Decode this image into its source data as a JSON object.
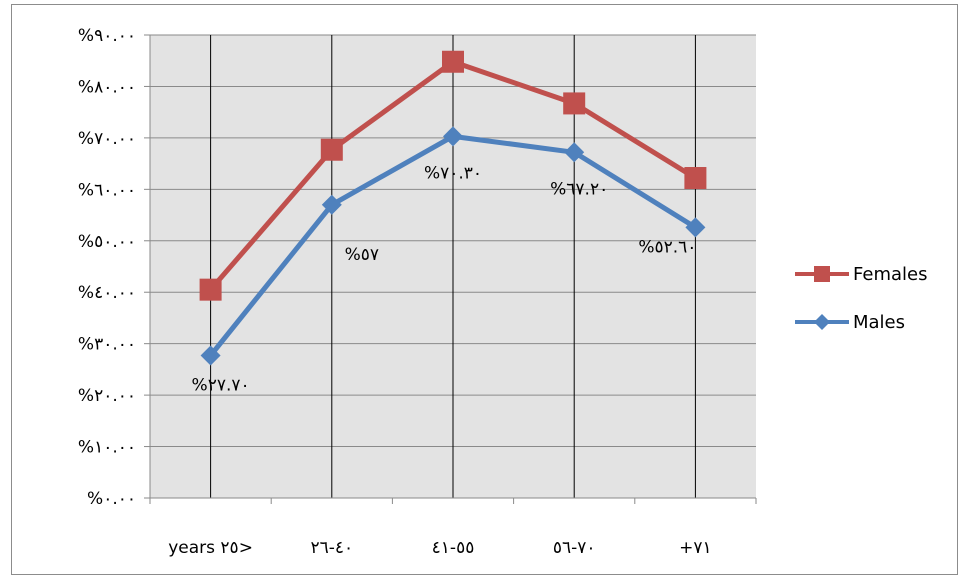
{
  "chart_data": {
    "type": "line",
    "title": "",
    "xlabel": "",
    "ylabel": "",
    "categories": [
      "years ٢٥>",
      "٤٠-٢٦",
      "٥٥-٤١",
      "٧٠-٥٦",
      "+٧١"
    ],
    "ylim": [
      0,
      90
    ],
    "yticks": [
      0,
      10,
      20,
      30,
      40,
      50,
      60,
      70,
      80,
      90
    ],
    "ytick_labels": [
      "%٠.٠٠",
      "%١٠.٠٠",
      "%٢٠.٠٠",
      "%٣٠.٠٠",
      "%٤٠.٠٠",
      "%٥٠.٠٠",
      "%٦٠.٠٠",
      "%٧٠.٠٠",
      "%٨٠.٠٠",
      "%٩٠.٠٠"
    ],
    "grid": true,
    "legend_position": "right",
    "series": [
      {
        "name": "Females",
        "color": "#c0504d",
        "marker": "square",
        "values": [
          40.5,
          67.7,
          84.8,
          76.7,
          62.2
        ],
        "labels": [
          "",
          "",
          "",
          "",
          ""
        ]
      },
      {
        "name": "Males",
        "color": "#4f81bd",
        "marker": "diamond",
        "values": [
          27.7,
          57,
          70.3,
          67.2,
          52.6
        ],
        "labels": [
          "%٢٧.٧٠",
          "%٥٧",
          "%٧٠.٣٠",
          "%٦٧.٢٠",
          "%٥٢.٦٠"
        ]
      }
    ]
  }
}
